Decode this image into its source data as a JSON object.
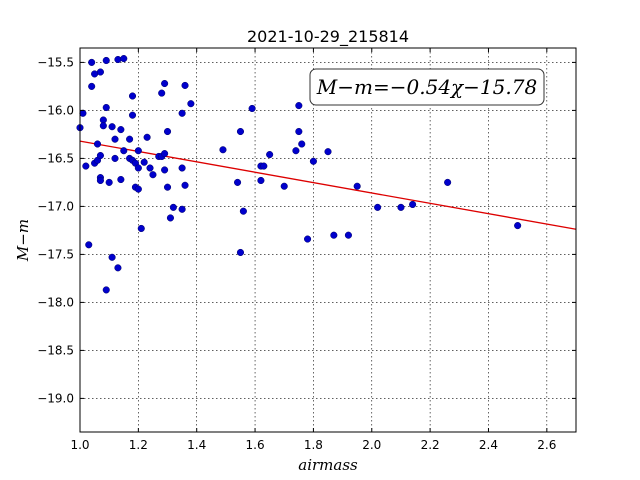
{
  "chart_data": {
    "type": "scatter",
    "title": "2021-10-29_215814",
    "xlabel": "airmass",
    "ylabel": "M−m",
    "xlim": [
      1.0,
      2.7
    ],
    "ylim": [
      -19.35,
      -15.35
    ],
    "y_inverted": true,
    "grid": true,
    "x_ticks": [
      1.0,
      1.2,
      1.4,
      1.6,
      1.8,
      2.0,
      2.2,
      2.4,
      2.6
    ],
    "x_tick_labels": [
      "1.0",
      "1.2",
      "1.4",
      "1.6",
      "1.8",
      "2.0",
      "2.2",
      "2.4",
      "2.6"
    ],
    "y_ticks": [
      -15.5,
      -16.0,
      -16.5,
      -17.0,
      -17.5,
      -18.0,
      -18.5,
      -19.0
    ],
    "y_tick_labels": [
      "−15.5",
      "−16.0",
      "−16.5",
      "−17.0",
      "−17.5",
      "−18.0",
      "−18.5",
      "−19.0"
    ],
    "point_color": "#0000cc",
    "fit_color": "#dd0000",
    "fit_label": "M−m=−0.54χ−15.78",
    "fit": {
      "slope": -0.54,
      "intercept": -15.78
    },
    "points": [
      {
        "x": 1.0,
        "y": -16.18
      },
      {
        "x": 1.01,
        "y": -16.03
      },
      {
        "x": 1.02,
        "y": -16.58
      },
      {
        "x": 1.03,
        "y": -17.4
      },
      {
        "x": 1.04,
        "y": -15.5
      },
      {
        "x": 1.04,
        "y": -15.75
      },
      {
        "x": 1.05,
        "y": -15.62
      },
      {
        "x": 1.05,
        "y": -16.55
      },
      {
        "x": 1.06,
        "y": -16.35
      },
      {
        "x": 1.06,
        "y": -16.52
      },
      {
        "x": 1.07,
        "y": -15.6
      },
      {
        "x": 1.07,
        "y": -16.47
      },
      {
        "x": 1.07,
        "y": -16.7
      },
      {
        "x": 1.07,
        "y": -16.73
      },
      {
        "x": 1.08,
        "y": -16.1
      },
      {
        "x": 1.08,
        "y": -16.16
      },
      {
        "x": 1.09,
        "y": -15.48
      },
      {
        "x": 1.09,
        "y": -15.97
      },
      {
        "x": 1.09,
        "y": -17.87
      },
      {
        "x": 1.1,
        "y": -16.75
      },
      {
        "x": 1.11,
        "y": -16.17
      },
      {
        "x": 1.11,
        "y": -17.53
      },
      {
        "x": 1.12,
        "y": -16.5
      },
      {
        "x": 1.12,
        "y": -16.3
      },
      {
        "x": 1.13,
        "y": -15.47
      },
      {
        "x": 1.13,
        "y": -17.64
      },
      {
        "x": 1.14,
        "y": -16.2
      },
      {
        "x": 1.14,
        "y": -16.72
      },
      {
        "x": 1.15,
        "y": -15.46
      },
      {
        "x": 1.15,
        "y": -16.42
      },
      {
        "x": 1.17,
        "y": -16.5
      },
      {
        "x": 1.17,
        "y": -16.3
      },
      {
        "x": 1.18,
        "y": -15.85
      },
      {
        "x": 1.18,
        "y": -16.05
      },
      {
        "x": 1.18,
        "y": -16.52
      },
      {
        "x": 1.19,
        "y": -16.55
      },
      {
        "x": 1.19,
        "y": -16.8
      },
      {
        "x": 1.2,
        "y": -16.82
      },
      {
        "x": 1.2,
        "y": -16.6
      },
      {
        "x": 1.2,
        "y": -16.42
      },
      {
        "x": 1.21,
        "y": -17.23
      },
      {
        "x": 1.22,
        "y": -16.54
      },
      {
        "x": 1.23,
        "y": -16.28
      },
      {
        "x": 1.24,
        "y": -16.6
      },
      {
        "x": 1.25,
        "y": -16.67
      },
      {
        "x": 1.27,
        "y": -16.48
      },
      {
        "x": 1.28,
        "y": -16.48
      },
      {
        "x": 1.28,
        "y": -15.82
      },
      {
        "x": 1.29,
        "y": -16.62
      },
      {
        "x": 1.29,
        "y": -16.45
      },
      {
        "x": 1.29,
        "y": -15.72
      },
      {
        "x": 1.3,
        "y": -16.22
      },
      {
        "x": 1.3,
        "y": -16.8
      },
      {
        "x": 1.31,
        "y": -17.12
      },
      {
        "x": 1.32,
        "y": -17.01
      },
      {
        "x": 1.35,
        "y": -16.6
      },
      {
        "x": 1.35,
        "y": -17.03
      },
      {
        "x": 1.35,
        "y": -16.03
      },
      {
        "x": 1.36,
        "y": -15.74
      },
      {
        "x": 1.36,
        "y": -16.78
      },
      {
        "x": 1.38,
        "y": -15.93
      },
      {
        "x": 1.49,
        "y": -16.41
      },
      {
        "x": 1.54,
        "y": -16.75
      },
      {
        "x": 1.55,
        "y": -17.48
      },
      {
        "x": 1.55,
        "y": -16.22
      },
      {
        "x": 1.56,
        "y": -17.05
      },
      {
        "x": 1.59,
        "y": -15.98
      },
      {
        "x": 1.62,
        "y": -16.73
      },
      {
        "x": 1.62,
        "y": -16.58
      },
      {
        "x": 1.63,
        "y": -16.58
      },
      {
        "x": 1.65,
        "y": -16.46
      },
      {
        "x": 1.7,
        "y": -16.79
      },
      {
        "x": 1.74,
        "y": -16.42
      },
      {
        "x": 1.75,
        "y": -16.22
      },
      {
        "x": 1.75,
        "y": -15.95
      },
      {
        "x": 1.76,
        "y": -16.35
      },
      {
        "x": 1.78,
        "y": -17.34
      },
      {
        "x": 1.8,
        "y": -16.53
      },
      {
        "x": 1.85,
        "y": -16.43
      },
      {
        "x": 1.87,
        "y": -17.3
      },
      {
        "x": 1.92,
        "y": -17.3
      },
      {
        "x": 1.95,
        "y": -16.79
      },
      {
        "x": 2.02,
        "y": -17.01
      },
      {
        "x": 2.1,
        "y": -17.01
      },
      {
        "x": 2.14,
        "y": -16.98
      },
      {
        "x": 2.26,
        "y": -16.75
      },
      {
        "x": 2.5,
        "y": -17.2
      }
    ]
  }
}
